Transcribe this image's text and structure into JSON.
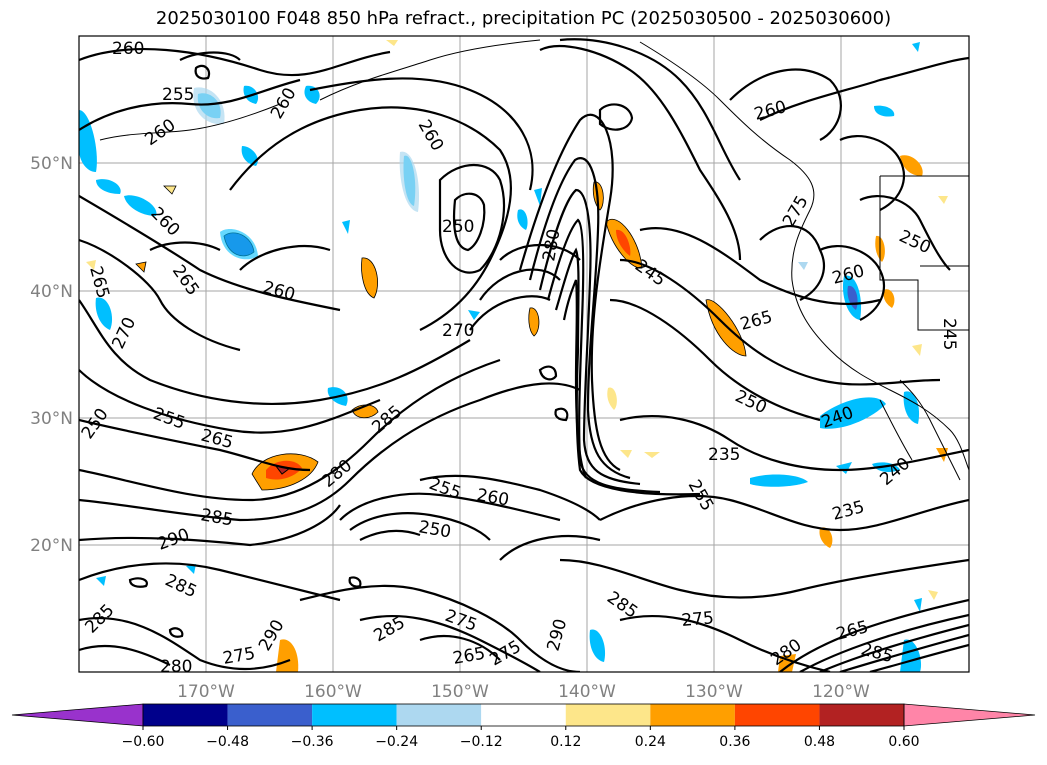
{
  "title": "2025030100 F048 850 hPa refract., precipitation PC (2025030500 - 2025030600)",
  "map": {
    "lat_labels": [
      "50°N",
      "40°N",
      "30°N",
      "20°N"
    ],
    "lon_labels": [
      "170°W",
      "160°W",
      "150°W",
      "140°W",
      "130°W",
      "120°W"
    ],
    "contour_labels": [
      "260",
      "255",
      "260",
      "265",
      "260",
      "250",
      "260",
      "265",
      "270",
      "260",
      "270",
      "265",
      "250",
      "255",
      "265",
      "285",
      "280",
      "290",
      "285",
      "255",
      "260",
      "250",
      "235",
      "255",
      "245",
      "265",
      "260",
      "250",
      "240",
      "235",
      "240",
      "285",
      "275",
      "290",
      "265",
      "275",
      "280",
      "265",
      "270",
      "285",
      "275",
      "280"
    ]
  },
  "colorbar": {
    "ticks": [
      "−0.60",
      "−0.48",
      "−0.36",
      "−0.24",
      "−0.12",
      "0.12",
      "0.24",
      "0.36",
      "0.48",
      "0.60"
    ],
    "colors": [
      "#9932cc",
      "#00008b",
      "#3a5fcd",
      "#00bfff",
      "#add8f0",
      "#ffffff",
      "#fde68a",
      "#ff9f00",
      "#ff4500",
      "#b22222",
      "#ff85a8"
    ]
  }
}
